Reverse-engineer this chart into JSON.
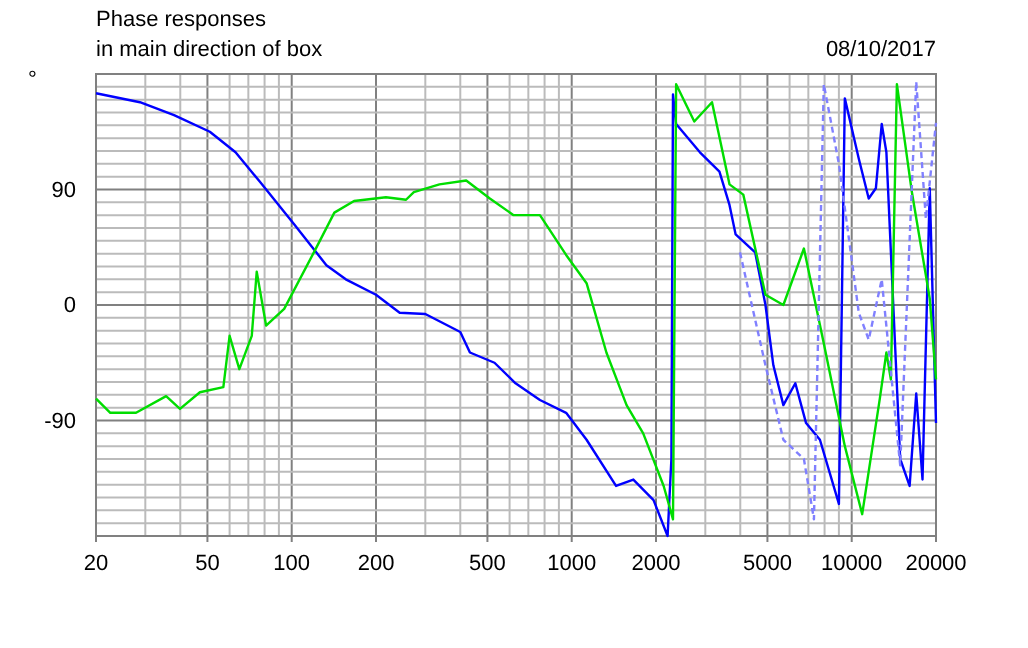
{
  "chart_data": {
    "type": "line",
    "title": "Phase responses",
    "subtitle": "in main direction of box",
    "ylabel": "°",
    "annotations": [
      "08/10/2017"
    ],
    "log": "x",
    "grid": true,
    "line_style": "solid",
    "marker": "none",
    "xlim": [
      20,
      20000
    ],
    "ylim": [
      -180,
      180
    ],
    "xticks": [
      20,
      {
        "value": 30,
        "label": null
      },
      {
        "value": 40,
        "label": null
      },
      50,
      {
        "value": 60,
        "label": null
      },
      {
        "value": 70,
        "label": null
      },
      {
        "value": 80,
        "label": null
      },
      {
        "value": 90,
        "label": null
      },
      100,
      200,
      {
        "value": 300,
        "label": null
      },
      {
        "value": 400,
        "label": null
      },
      500,
      {
        "value": 600,
        "label": null
      },
      {
        "value": 700,
        "label": null
      },
      {
        "value": 800,
        "label": null
      },
      {
        "value": 900,
        "label": null
      },
      1000,
      2000,
      {
        "value": 3000,
        "label": null
      },
      {
        "value": 4000,
        "label": null
      },
      5000,
      {
        "value": 6000,
        "label": null
      },
      {
        "value": 7000,
        "label": null
      },
      {
        "value": 8000,
        "label": null
      },
      {
        "value": 9000,
        "label": null
      },
      10000,
      20000
    ],
    "yticks": [
      {
        "value": -180,
        "label": null
      },
      {
        "value": -170,
        "label": null
      },
      {
        "value": -160,
        "label": null
      },
      {
        "value": -150,
        "label": null
      },
      {
        "value": -140,
        "label": null
      },
      {
        "value": -130,
        "label": null
      },
      {
        "value": -120,
        "label": null
      },
      {
        "value": -110,
        "label": null
      },
      {
        "value": -100,
        "label": null
      },
      -90,
      {
        "value": -80,
        "label": null
      },
      {
        "value": -70,
        "label": null
      },
      {
        "value": -60,
        "label": null
      },
      {
        "value": -50,
        "label": null
      },
      {
        "value": -40,
        "label": null
      },
      {
        "value": -30,
        "label": null
      },
      {
        "value": -20,
        "label": null
      },
      {
        "value": -10,
        "label": null
      },
      0,
      {
        "value": 10,
        "label": null
      },
      {
        "value": 20,
        "label": null
      },
      {
        "value": 30,
        "label": null
      },
      {
        "value": 40,
        "label": null
      },
      {
        "value": 50,
        "label": null
      },
      {
        "value": 60,
        "label": null
      },
      {
        "value": 70,
        "label": null
      },
      {
        "value": 80,
        "label": null
      },
      90,
      {
        "value": 100,
        "label": null
      },
      {
        "value": 110,
        "label": null
      },
      {
        "value": 120,
        "label": null
      },
      {
        "value": 130,
        "label": null
      },
      {
        "value": 140,
        "label": null
      },
      {
        "value": 150,
        "label": null
      },
      {
        "value": 160,
        "label": null
      },
      {
        "value": 170,
        "label": null
      },
      {
        "value": 180,
        "label": null
      }
    ],
    "series": [
      {
        "color": "#0000ff",
        "x": [
          20,
          28.7,
          38,
          51,
          63,
          77,
          102,
          133,
          156,
          200,
          243,
          300,
          400,
          433,
          530,
          630,
          770,
          955,
          1130,
          1440,
          1660,
          1960,
          2200,
          2270,
          2300,
          2360,
          2870,
          3370,
          3660,
          3850,
          4520,
          4920,
          5250,
          5700,
          6290,
          6870,
          7700,
          9000,
          9450,
          10600,
          11500,
          12200,
          12800,
          13300,
          14900,
          16100,
          17000,
          17900,
          19000,
          20000
        ],
        "values": [
          165,
          158,
          148,
          135,
          119,
          96,
          63,
          31,
          20,
          8,
          -6,
          -7,
          -21,
          -37,
          -45,
          -61,
          -74,
          -84,
          -105,
          -141,
          -136,
          -152,
          -180,
          -120,
          164,
          141,
          119,
          104,
          78,
          55,
          41,
          0,
          -47,
          -78,
          -61,
          -92,
          -105,
          -155,
          161,
          114,
          83,
          91,
          141,
          119,
          -120,
          -141,
          -69,
          -136,
          91,
          -92
        ]
      },
      {
        "color": "#00dd00",
        "x": [
          20,
          22.5,
          27.8,
          35.6,
          39.9,
          47,
          57,
          60,
          65,
          72,
          75,
          81,
          94,
          120,
          142,
          167,
          217,
          256,
          273,
          337,
          420,
          510,
          620,
          770,
          955,
          1130,
          1330,
          1570,
          1800,
          2130,
          2300,
          2360,
          2740,
          3170,
          3660,
          4100,
          4920,
          5700,
          6750,
          7950,
          9450,
          10900,
          12600,
          13300,
          13800,
          14500,
          16400,
          19000,
          20000
        ],
        "values": [
          -73,
          -84,
          -84,
          -71,
          -81,
          -68,
          -64,
          -24,
          -50,
          -24,
          26,
          -16,
          -3,
          41,
          72,
          81,
          84,
          82,
          88,
          94,
          97,
          83,
          70,
          70,
          39,
          17,
          -37,
          -78,
          -100,
          -141,
          -167,
          172,
          143,
          158,
          94,
          86,
          8,
          0,
          44,
          -30,
          -110,
          -163,
          -73,
          -37,
          -58,
          172,
          88,
          5,
          -58
        ]
      },
      {
        "color": "#8080ff",
        "line_style": "dashed",
        "x": [
          3990,
          4920,
          5700,
          6750,
          7330,
          7950,
          9000,
          10600,
          11500,
          12800,
          14900,
          17000,
          18400,
          20000
        ],
        "values": [
          41,
          -47,
          -105,
          -120,
          -167,
          172,
          110,
          -6,
          -27,
          20,
          -125,
          174,
          67,
          142
        ]
      }
    ]
  }
}
